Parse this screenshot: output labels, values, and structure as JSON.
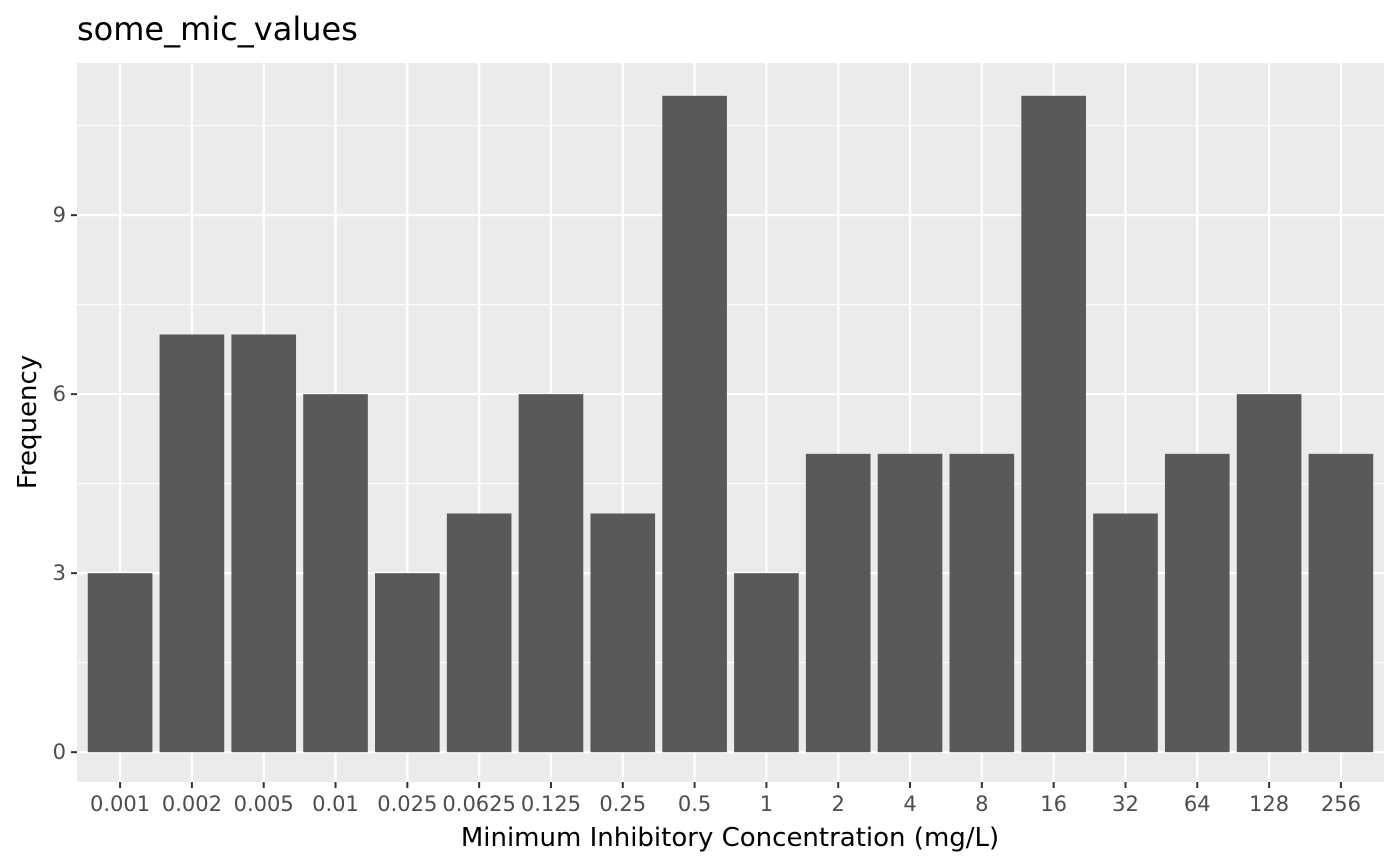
{
  "chart_data": {
    "type": "bar",
    "title": "some_mic_values",
    "xlabel": "Minimum Inhibitory Concentration (mg/L)",
    "ylabel": "Frequency",
    "categories": [
      "0.001",
      "0.002",
      "0.005",
      "0.01",
      "0.025",
      "0.0625",
      "0.125",
      "0.25",
      "0.5",
      "1",
      "2",
      "4",
      "8",
      "16",
      "32",
      "64",
      "128",
      "256"
    ],
    "values": [
      3,
      7,
      7,
      6,
      3,
      4,
      6,
      4,
      11,
      3,
      5,
      5,
      5,
      11,
      4,
      5,
      6,
      5
    ],
    "ylim": [
      -0.5,
      11.55
    ],
    "yticks": [
      0,
      3,
      6,
      9
    ],
    "ytick_labels": [
      "0",
      "3",
      "6",
      "9"
    ],
    "grid": true,
    "legend": "none",
    "colors": {
      "panel_background": "#ebebeb",
      "grid_major": "#ffffff",
      "bar_fill": "#595959",
      "tick_text": "#4d4d4d"
    }
  }
}
